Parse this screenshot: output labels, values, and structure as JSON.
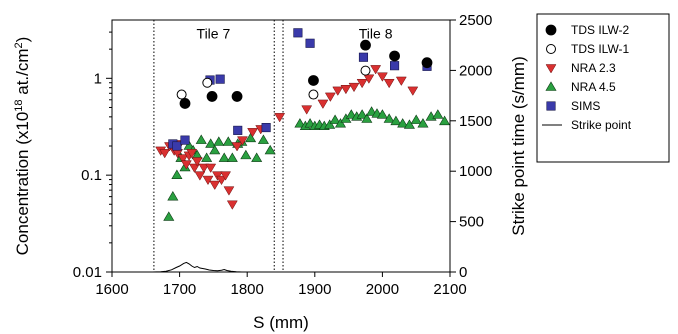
{
  "chart_data": {
    "type": "scatter",
    "xlabel": "S (mm)",
    "ylabel_left": "Concentration (x10",
    "ylabel_left_sup1": "18",
    "ylabel_left_mid": " at./cm",
    "ylabel_left_sup2": "2",
    "ylabel_left_end": ")",
    "ylabel_right": "Strike point time (s/mm)",
    "xlim": [
      1600,
      2100
    ],
    "ylim_left": [
      0.01,
      4
    ],
    "ylim_right": [
      0,
      2500
    ],
    "yscale_left": "log",
    "x_ticks": [
      "1600",
      "1700",
      "1800",
      "1900",
      "2000",
      "2100"
    ],
    "y_left_ticks": [
      "0.01",
      "0.1",
      "1"
    ],
    "y_right_ticks": [
      "0",
      "500",
      "1000",
      "1500",
      "2000",
      "2500"
    ],
    "vlines": [
      1662,
      1840,
      1853
    ],
    "annotations": [
      {
        "text": "Tile 7",
        "x": 1750,
        "y": 2.9
      },
      {
        "text": "Tile 8",
        "x": 1990,
        "y": 2.9
      }
    ],
    "legend_position": "outside-right",
    "series": [
      {
        "name": "TDS ILW-2",
        "marker": "circle-filled",
        "color": "#000000",
        "axis": "left",
        "points": [
          [
            1708,
            0.55
          ],
          [
            1748,
            0.65
          ],
          [
            1785,
            0.65
          ],
          [
            1898,
            0.95
          ],
          [
            1975,
            2.2
          ],
          [
            2018,
            1.7
          ],
          [
            2066,
            1.45
          ]
        ]
      },
      {
        "name": "TDS ILW-1",
        "marker": "circle-open",
        "color": "#000000",
        "axis": "left",
        "points": [
          [
            1703,
            0.68
          ],
          [
            1741,
            0.9
          ],
          [
            1898,
            0.68
          ],
          [
            1975,
            1.2
          ]
        ]
      },
      {
        "name": "NRA 2.3",
        "marker": "triangle-down",
        "color": "#d93030",
        "axis": "left",
        "points": [
          [
            1672,
            0.18
          ],
          [
            1678,
            0.17
          ],
          [
            1685,
            0.2
          ],
          [
            1692,
            0.18
          ],
          [
            1697,
            0.17
          ],
          [
            1700,
            0.21
          ],
          [
            1705,
            0.15
          ],
          [
            1710,
            0.13
          ],
          [
            1714,
            0.16
          ],
          [
            1718,
            0.17
          ],
          [
            1722,
            0.12
          ],
          [
            1726,
            0.14
          ],
          [
            1730,
            0.1
          ],
          [
            1736,
            0.12
          ],
          [
            1742,
            0.09
          ],
          [
            1746,
            0.12
          ],
          [
            1752,
            0.08
          ],
          [
            1756,
            0.1
          ],
          [
            1762,
            0.09
          ],
          [
            1768,
            0.1
          ],
          [
            1773,
            0.07
          ],
          [
            1778,
            0.05
          ],
          [
            1785,
            0.2
          ],
          [
            1793,
            0.23
          ],
          [
            1808,
            0.28
          ],
          [
            1820,
            0.3
          ],
          [
            1848,
            0.4
          ],
          [
            1888,
            0.48
          ],
          [
            1912,
            0.55
          ],
          [
            1923,
            0.65
          ],
          [
            1934,
            0.75
          ],
          [
            1946,
            0.78
          ],
          [
            1958,
            0.82
          ],
          [
            1970,
            0.9
          ],
          [
            1980,
            1.0
          ],
          [
            1990,
            1.25
          ],
          [
            2000,
            1.05
          ],
          [
            2010,
            0.9
          ],
          [
            2028,
            0.95
          ],
          [
            2045,
            0.75
          ]
        ]
      },
      {
        "name": "NRA 4.5",
        "marker": "triangle-up",
        "color": "#2aa040",
        "axis": "left",
        "points": [
          [
            1684,
            0.037
          ],
          [
            1690,
            0.06
          ],
          [
            1696,
            0.1
          ],
          [
            1702,
            0.15
          ],
          [
            1708,
            0.12
          ],
          [
            1714,
            0.2
          ],
          [
            1720,
            0.18
          ],
          [
            1726,
            0.16
          ],
          [
            1732,
            0.23
          ],
          [
            1740,
            0.15
          ],
          [
            1746,
            0.21
          ],
          [
            1752,
            0.18
          ],
          [
            1758,
            0.22
          ],
          [
            1766,
            0.15
          ],
          [
            1772,
            0.22
          ],
          [
            1778,
            0.15
          ],
          [
            1786,
            0.21
          ],
          [
            1792,
            0.22
          ],
          [
            1798,
            0.16
          ],
          [
            1805,
            0.24
          ],
          [
            1814,
            0.15
          ],
          [
            1824,
            0.23
          ],
          [
            1834,
            0.18
          ],
          [
            1878,
            0.34
          ],
          [
            1886,
            0.32
          ],
          [
            1893,
            0.34
          ],
          [
            1900,
            0.32
          ],
          [
            1907,
            0.33
          ],
          [
            1914,
            0.32
          ],
          [
            1922,
            0.33
          ],
          [
            1930,
            0.37
          ],
          [
            1938,
            0.34
          ],
          [
            1946,
            0.38
          ],
          [
            1954,
            0.42
          ],
          [
            1962,
            0.4
          ],
          [
            1970,
            0.42
          ],
          [
            1977,
            0.38
          ],
          [
            1984,
            0.45
          ],
          [
            1992,
            0.43
          ],
          [
            2000,
            0.42
          ],
          [
            2010,
            0.38
          ],
          [
            2020,
            0.36
          ],
          [
            2030,
            0.34
          ],
          [
            2040,
            0.33
          ],
          [
            2050,
            0.37
          ],
          [
            2060,
            0.34
          ],
          [
            2072,
            0.4
          ],
          [
            2082,
            0.42
          ],
          [
            2092,
            0.36
          ]
        ]
      },
      {
        "name": "SIMS",
        "marker": "square",
        "color": "#3a3aaa",
        "axis": "left",
        "points": [
          [
            1690,
            0.21
          ],
          [
            1696,
            0.2
          ],
          [
            1708,
            0.23
          ],
          [
            1745,
            0.96
          ],
          [
            1760,
            0.98
          ],
          [
            1786,
            0.29
          ],
          [
            1828,
            0.31
          ],
          [
            1875,
            2.95
          ],
          [
            1893,
            2.3
          ],
          [
            1972,
            1.65
          ],
          [
            2018,
            1.35
          ],
          [
            2066,
            1.33
          ]
        ]
      },
      {
        "name": "Strike point",
        "marker": "line",
        "color": "#000000",
        "axis": "right",
        "points": [
          [
            1660,
            0
          ],
          [
            1672,
            2
          ],
          [
            1680,
            8
          ],
          [
            1688,
            22
          ],
          [
            1695,
            45
          ],
          [
            1700,
            60
          ],
          [
            1706,
            85
          ],
          [
            1710,
            95
          ],
          [
            1714,
            80
          ],
          [
            1718,
            60
          ],
          [
            1722,
            45
          ],
          [
            1726,
            55
          ],
          [
            1730,
            40
          ],
          [
            1734,
            35
          ],
          [
            1738,
            30
          ],
          [
            1744,
            20
          ],
          [
            1750,
            15
          ],
          [
            1756,
            12
          ],
          [
            1762,
            18
          ],
          [
            1766,
            25
          ],
          [
            1770,
            15
          ],
          [
            1776,
            8
          ],
          [
            1784,
            3
          ],
          [
            1792,
            0
          ],
          [
            1800,
            0
          ]
        ]
      }
    ]
  }
}
